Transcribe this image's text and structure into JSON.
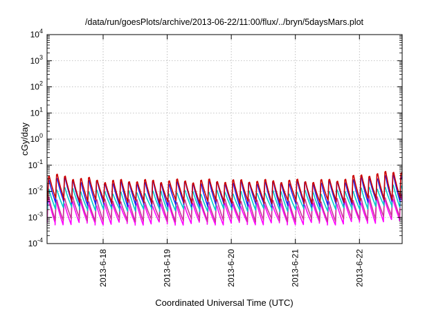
{
  "chart_data": {
    "type": "line",
    "title": "/data/run/goesPlots/archive/2013-06-22/11:00/flux/../bryn/5daysMars.plot",
    "xlabel": "Coordinated Universal Time (UTC)",
    "ylabel": "cGy/day",
    "x_range": [
      "2013-06-17 03:00",
      "2013-06-22 16:00"
    ],
    "y_scale": "log",
    "ylim": [
      0.0001,
      10000
    ],
    "grid": true,
    "legend": "none",
    "y_ticks": [
      {
        "base": "10",
        "exp": "-4"
      },
      {
        "base": "10",
        "exp": "-3"
      },
      {
        "base": "10",
        "exp": "-2"
      },
      {
        "base": "10",
        "exp": "-1"
      },
      {
        "base": "10",
        "exp": "0"
      },
      {
        "base": "10",
        "exp": "1"
      },
      {
        "base": "10",
        "exp": "2"
      },
      {
        "base": "10",
        "exp": "3"
      },
      {
        "base": "10",
        "exp": "4"
      }
    ],
    "x_ticks": [
      "2013-6-18",
      "2013-6-19",
      "2013-6-20",
      "2013-6-21",
      "2013-6-22"
    ],
    "cycle_hours": 3.0,
    "series": [
      {
        "color": "#ff00ff",
        "peak": [
          0.006,
          0.004,
          0.008
        ],
        "trough": [
          0.0006,
          0.0006,
          0.0008
        ]
      },
      {
        "color": "#cc3399",
        "peak": [
          0.008,
          0.006,
          0.01
        ],
        "trough": [
          0.0009,
          0.0008,
          0.0011
        ]
      },
      {
        "color": "#00cccc",
        "peak": [
          0.018,
          0.012,
          0.022
        ],
        "trough": [
          0.0025,
          0.002,
          0.003
        ]
      },
      {
        "color": "#2222ee",
        "peak": [
          0.045,
          0.03,
          0.06
        ],
        "trough": [
          0.004,
          0.003,
          0.005
        ]
      },
      {
        "color": "#cc0000",
        "peak": [
          0.06,
          0.035,
          0.09
        ],
        "trough": [
          0.005,
          0.004,
          0.006
        ]
      }
    ]
  }
}
